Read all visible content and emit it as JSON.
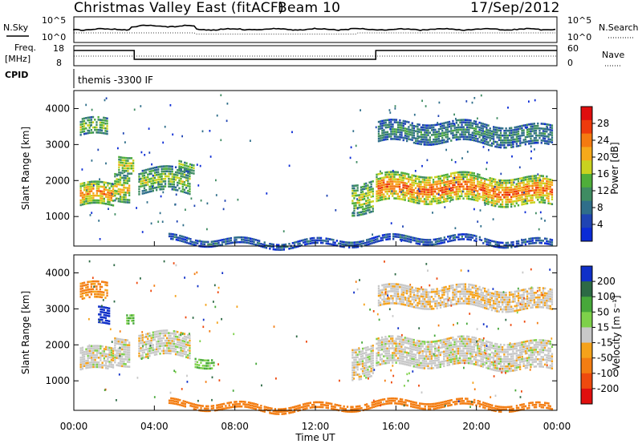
{
  "header": {
    "title": "Christmas Valley East (fitACF)",
    "beam": "Beam 10",
    "date": "17/Sep/2012"
  },
  "noise_panel": {
    "left_label": "N.Sky",
    "right_label": "N.Search",
    "left_ticks": [
      "10^5",
      "10^0"
    ],
    "right_ticks": [
      "10^5",
      "10^0"
    ]
  },
  "freq_panel": {
    "left_label_line1": "Freq.",
    "left_label_line2": "[MHz]",
    "right_label": "Nave",
    "left_ticks": [
      "18",
      "8"
    ],
    "right_ticks": [
      "60",
      "0"
    ]
  },
  "cpid_panel": {
    "label": "CPID",
    "program": "themis -3300 IF"
  },
  "colors": {
    "power": [
      "#0b2bd6",
      "#1f44b3",
      "#2f6e8a",
      "#3f8c62",
      "#4fae3a",
      "#c9d21f",
      "#f6a91a",
      "#f57a10",
      "#ee3b0c",
      "#e00e0e"
    ],
    "velocity_pos": [
      "#1030c8",
      "#2d6a45",
      "#47a83a",
      "#7ed14a"
    ],
    "velocity_neutral": "#c8c8c8",
    "velocity_neg": [
      "#f5a21a",
      "#f37d12",
      "#ee4a0e",
      "#e0100e"
    ]
  },
  "chart_data": [
    {
      "type": "heatmap",
      "panel": "power",
      "ylabel": "Slant Range [km]",
      "colorbar_label": "Power [dB]",
      "colorbar_ticks": [
        "28",
        "24",
        "20",
        "16",
        "12",
        "8",
        "4"
      ],
      "y_ticks": [
        "4000",
        "3000",
        "2000",
        "1000"
      ],
      "ylim": [
        180,
        4500
      ],
      "xlim": [
        0,
        24
      ],
      "regions": [
        {
          "t0": 0.3,
          "t1": 2.0,
          "r0": 1250,
          "r1": 1900,
          "level": 0.65
        },
        {
          "t0": 2.0,
          "t1": 2.8,
          "r0": 1400,
          "r1": 2200,
          "level": 0.55
        },
        {
          "t0": 2.2,
          "t1": 3.0,
          "r0": 2200,
          "r1": 2700,
          "level": 0.5
        },
        {
          "t0": 0.3,
          "t1": 1.7,
          "r0": 3200,
          "r1": 3700,
          "level": 0.45
        },
        {
          "t0": 3.2,
          "t1": 5.8,
          "r0": 1600,
          "r1": 2300,
          "level": 0.45
        },
        {
          "t0": 5.2,
          "t1": 6.0,
          "r0": 2200,
          "r1": 2500,
          "level": 0.4
        },
        {
          "t0": 13.8,
          "t1": 14.9,
          "r0": 1100,
          "r1": 2000,
          "level": 0.5
        },
        {
          "t0": 15.0,
          "t1": 23.8,
          "r0": 1350,
          "r1": 2150,
          "level": 0.7
        },
        {
          "t0": 15.1,
          "t1": 23.8,
          "r0": 3000,
          "r1": 3600,
          "level": 0.3
        },
        {
          "t0": 4.7,
          "t1": 23.8,
          "r0": 220,
          "r1": 420,
          "level": 0.2
        }
      ]
    },
    {
      "type": "heatmap",
      "panel": "velocity",
      "ylabel": "Slant Range [km]",
      "colorbar_label": "Velocity [m s⁻¹]",
      "colorbar_ticks": [
        "200",
        "100",
        "50",
        "15",
        "-15",
        "-50",
        "-100",
        "-200"
      ],
      "y_ticks": [
        "4000",
        "3000",
        "2000",
        "1000"
      ],
      "ylim": [
        180,
        4500
      ],
      "xlim": [
        0,
        24
      ],
      "regions": [
        {
          "t0": 0.3,
          "t1": 2.0,
          "r0": 1250,
          "r1": 1900,
          "v": 0
        },
        {
          "t0": 2.0,
          "t1": 2.8,
          "r0": 1400,
          "r1": 2200,
          "v": 0
        },
        {
          "t0": 0.3,
          "t1": 1.7,
          "r0": 3200,
          "r1": 3700,
          "v": -60
        },
        {
          "t0": 1.2,
          "t1": 1.8,
          "r0": 2500,
          "r1": 3000,
          "v": 180
        },
        {
          "t0": 2.6,
          "t1": 3.0,
          "r0": 2600,
          "r1": 2900,
          "v": 40
        },
        {
          "t0": 3.2,
          "t1": 5.8,
          "r0": 1600,
          "r1": 2300,
          "v": 0
        },
        {
          "t0": 6.0,
          "t1": 7.0,
          "r0": 1400,
          "r1": 1700,
          "v": 30
        },
        {
          "t0": 13.8,
          "t1": 14.9,
          "r0": 1100,
          "r1": 2000,
          "v": 0
        },
        {
          "t0": 15.0,
          "t1": 23.8,
          "r0": 1350,
          "r1": 2150,
          "v": 0
        },
        {
          "t0": 15.1,
          "t1": 23.8,
          "r0": 3000,
          "r1": 3600,
          "v": -10
        },
        {
          "t0": 4.7,
          "t1": 23.8,
          "r0": 220,
          "r1": 420,
          "v": -70
        }
      ]
    }
  ],
  "time_axis": {
    "ticks": [
      "00:00",
      "04:00",
      "08:00",
      "12:00",
      "16:00",
      "20:00",
      "00:00"
    ],
    "label": "Time UT"
  }
}
